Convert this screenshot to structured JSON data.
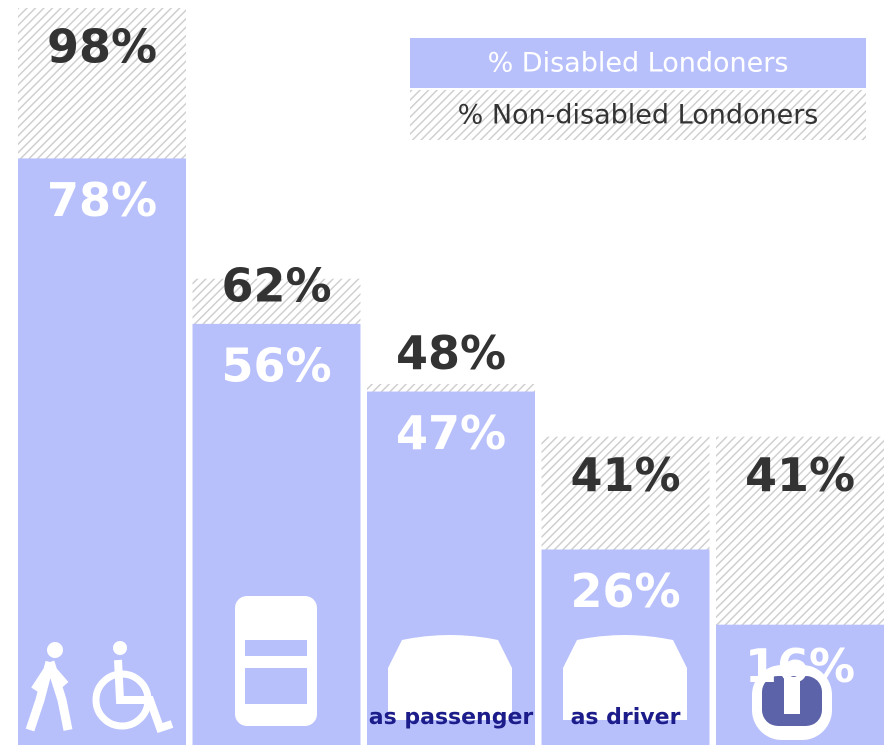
{
  "chart_data": {
    "type": "overlap-bar",
    "categories": [
      null,
      null,
      "as passenger",
      "as driver",
      null
    ],
    "series": [
      {
        "name": "% Non-disabled Londoners",
        "color": "#cfcfcf",
        "pattern": "hatch",
        "values": [
          98,
          62,
          48,
          41,
          41
        ],
        "value_labels": [
          "98%",
          "62%",
          "48%",
          "41%",
          "41%"
        ]
      },
      {
        "name": "% Disabled Londoners",
        "color": "#b8c0fc",
        "values": [
          78,
          56,
          47,
          26,
          16
        ],
        "value_labels": [
          "78%",
          "56%",
          "47%",
          "26%",
          "16%"
        ]
      }
    ],
    "legend": "top-right"
  }
}
